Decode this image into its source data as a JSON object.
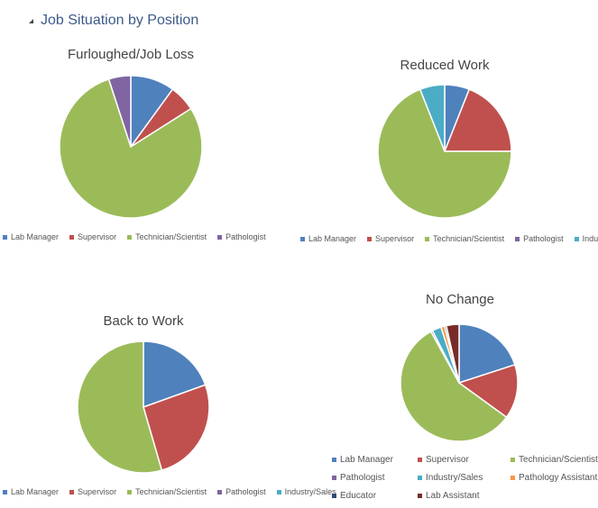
{
  "heading": "Job Situation by Position",
  "colors": {
    "Lab Manager": "#4f81bd",
    "Supervisor": "#c0504d",
    "Technician/Scientist": "#9bbb59",
    "Pathologist": "#8064a2",
    "Industry/Sales": "#4bacc6",
    "Pathology Assistant": "#f79646",
    "Educator": "#2c4d75",
    "Lab Assistant": "#772c2a"
  },
  "chart_data": [
    {
      "type": "pie",
      "title": "Furloughed/Job Loss",
      "legend": "bottom",
      "categories": [
        "Lab Manager",
        "Supervisor",
        "Technician/Scientist",
        "Pathologist"
      ],
      "values": [
        10,
        6,
        79,
        5
      ]
    },
    {
      "type": "pie",
      "title": "Reduced Work",
      "legend": "bottom",
      "categories": [
        "Lab Manager",
        "Supervisor",
        "Technician/Scientist",
        "Pathologist",
        "Industry/Sales"
      ],
      "values": [
        6,
        19,
        69,
        0,
        6
      ]
    },
    {
      "type": "pie",
      "title": "Back to Work",
      "legend": "bottom",
      "categories": [
        "Lab Manager",
        "Supervisor",
        "Technician/Scientist",
        "Pathologist",
        "Industry/Sales"
      ],
      "values": [
        19.5,
        26,
        54.5,
        0,
        0
      ]
    },
    {
      "type": "pie",
      "title": "No Change",
      "legend": "bottom",
      "categories": [
        "Lab Manager",
        "Supervisor",
        "Technician/Scientist",
        "Pathologist",
        "Industry/Sales",
        "Pathology Assistant",
        "Educator",
        "Lab Assistant"
      ],
      "values": [
        20,
        15,
        57,
        0.5,
        2.5,
        1,
        0.5,
        3.5
      ]
    }
  ]
}
